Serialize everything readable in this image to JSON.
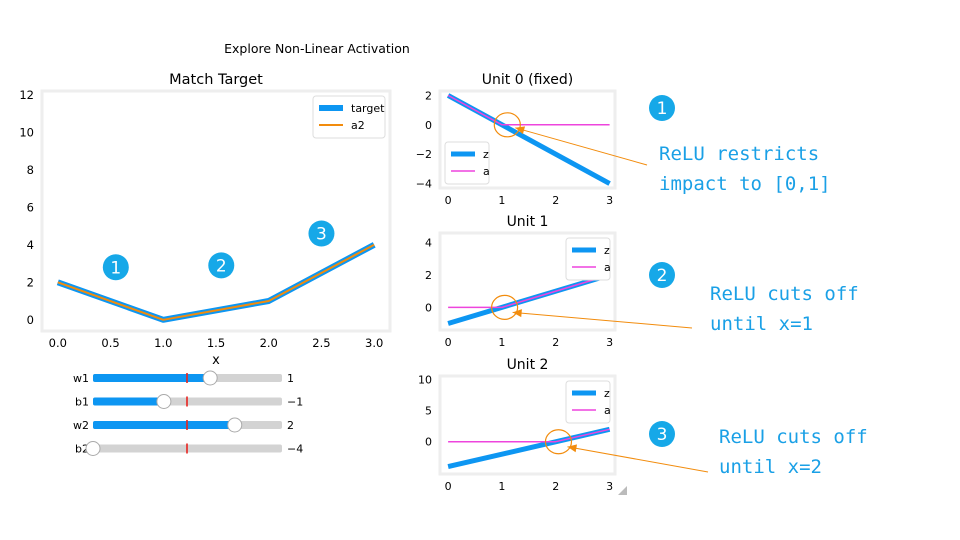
{
  "figure_title": "Explore Non-Linear Activation",
  "colors": {
    "blue": "#0d96f2",
    "orange": "#f28c0d",
    "magenta": "#ee44dd",
    "badge": "#16a8e8",
    "note": "#1aa0e6",
    "frame": "#eeeeee",
    "slider_track": "#d3d3d3",
    "slider_mark": "#e8221e"
  },
  "chart_data": [
    {
      "type": "line",
      "title": "Match Target",
      "xlabel": "x",
      "ylabel": "",
      "xlim": [
        -0.15,
        3.15
      ],
      "ylim": [
        -0.6,
        12.2
      ],
      "xticks": [
        "0.0",
        "0.5",
        "1.0",
        "1.5",
        "2.0",
        "2.5",
        "3.0"
      ],
      "yticks": [
        "0",
        "2",
        "4",
        "6",
        "8",
        "10",
        "12"
      ],
      "legend": "top-right",
      "series": [
        {
          "name": "target",
          "color": "#0d96f2",
          "x": [
            0,
            1,
            2,
            3
          ],
          "y": [
            2,
            0,
            1,
            4
          ]
        },
        {
          "name": "a2",
          "color": "#f28c0d",
          "x": [
            0,
            1,
            2,
            3
          ],
          "y": [
            2,
            0,
            1,
            4
          ]
        }
      ],
      "annotations": [
        {
          "label": "1",
          "x": 0.55,
          "y": 2.8
        },
        {
          "label": "2",
          "x": 1.55,
          "y": 2.9
        },
        {
          "label": "3",
          "x": 2.5,
          "y": 4.6
        }
      ]
    },
    {
      "type": "line",
      "title": "Unit 0 (fixed)",
      "xlim": [
        -0.15,
        3.1
      ],
      "ylim": [
        -4.3,
        2.3
      ],
      "xticks": [
        "0",
        "1",
        "2",
        "3"
      ],
      "yticks": [
        "2",
        "0",
        "−2",
        "−4"
      ],
      "legend": "bottom-left",
      "series": [
        {
          "name": "z",
          "color": "#0d96f2",
          "x": [
            0,
            3
          ],
          "y": [
            2,
            -4
          ]
        },
        {
          "name": "a",
          "color": "#ee44dd",
          "x": [
            0,
            1,
            3
          ],
          "y": [
            2,
            0,
            0
          ]
        }
      ]
    },
    {
      "type": "line",
      "title": "Unit 1",
      "xlim": [
        -0.15,
        3.1
      ],
      "ylim": [
        -1.4,
        4.6
      ],
      "xticks": [
        "0",
        "1",
        "2",
        "3"
      ],
      "yticks": [
        "4",
        "2",
        "0"
      ],
      "legend": "top-right",
      "series": [
        {
          "name": "z",
          "color": "#0d96f2",
          "x": [
            0,
            3
          ],
          "y": [
            -1,
            2
          ]
        },
        {
          "name": "a",
          "color": "#ee44dd",
          "x": [
            0,
            1,
            3
          ],
          "y": [
            0,
            0,
            2
          ]
        }
      ]
    },
    {
      "type": "line",
      "title": "Unit 2",
      "xlim": [
        -0.15,
        3.1
      ],
      "ylim": [
        -5.2,
        10.6
      ],
      "xticks": [
        "0",
        "1",
        "2",
        "3"
      ],
      "yticks": [
        "10",
        "5",
        "0"
      ],
      "legend": "top-right",
      "series": [
        {
          "name": "z",
          "color": "#0d96f2",
          "x": [
            0,
            3
          ],
          "y": [
            -4,
            2
          ]
        },
        {
          "name": "a",
          "color": "#ee44dd",
          "x": [
            0,
            2,
            3
          ],
          "y": [
            0,
            0,
            2
          ]
        }
      ]
    }
  ],
  "sliders": [
    {
      "label": "w1",
      "value": "1",
      "fraction": 0.62
    },
    {
      "label": "b1",
      "value": "−1",
      "fraction": 0.375
    },
    {
      "label": "w2",
      "value": "2",
      "fraction": 0.75
    },
    {
      "label": "b2",
      "value": "−4",
      "fraction": 0.0
    }
  ],
  "badges": [
    "1",
    "2",
    "3"
  ],
  "notes": [
    {
      "lines": [
        "ReLU restricts",
        "impact to [0,1]"
      ]
    },
    {
      "lines": [
        "ReLU cuts off",
        "until x=1"
      ]
    },
    {
      "lines": [
        "ReLU cuts off",
        "until x=2"
      ]
    }
  ]
}
